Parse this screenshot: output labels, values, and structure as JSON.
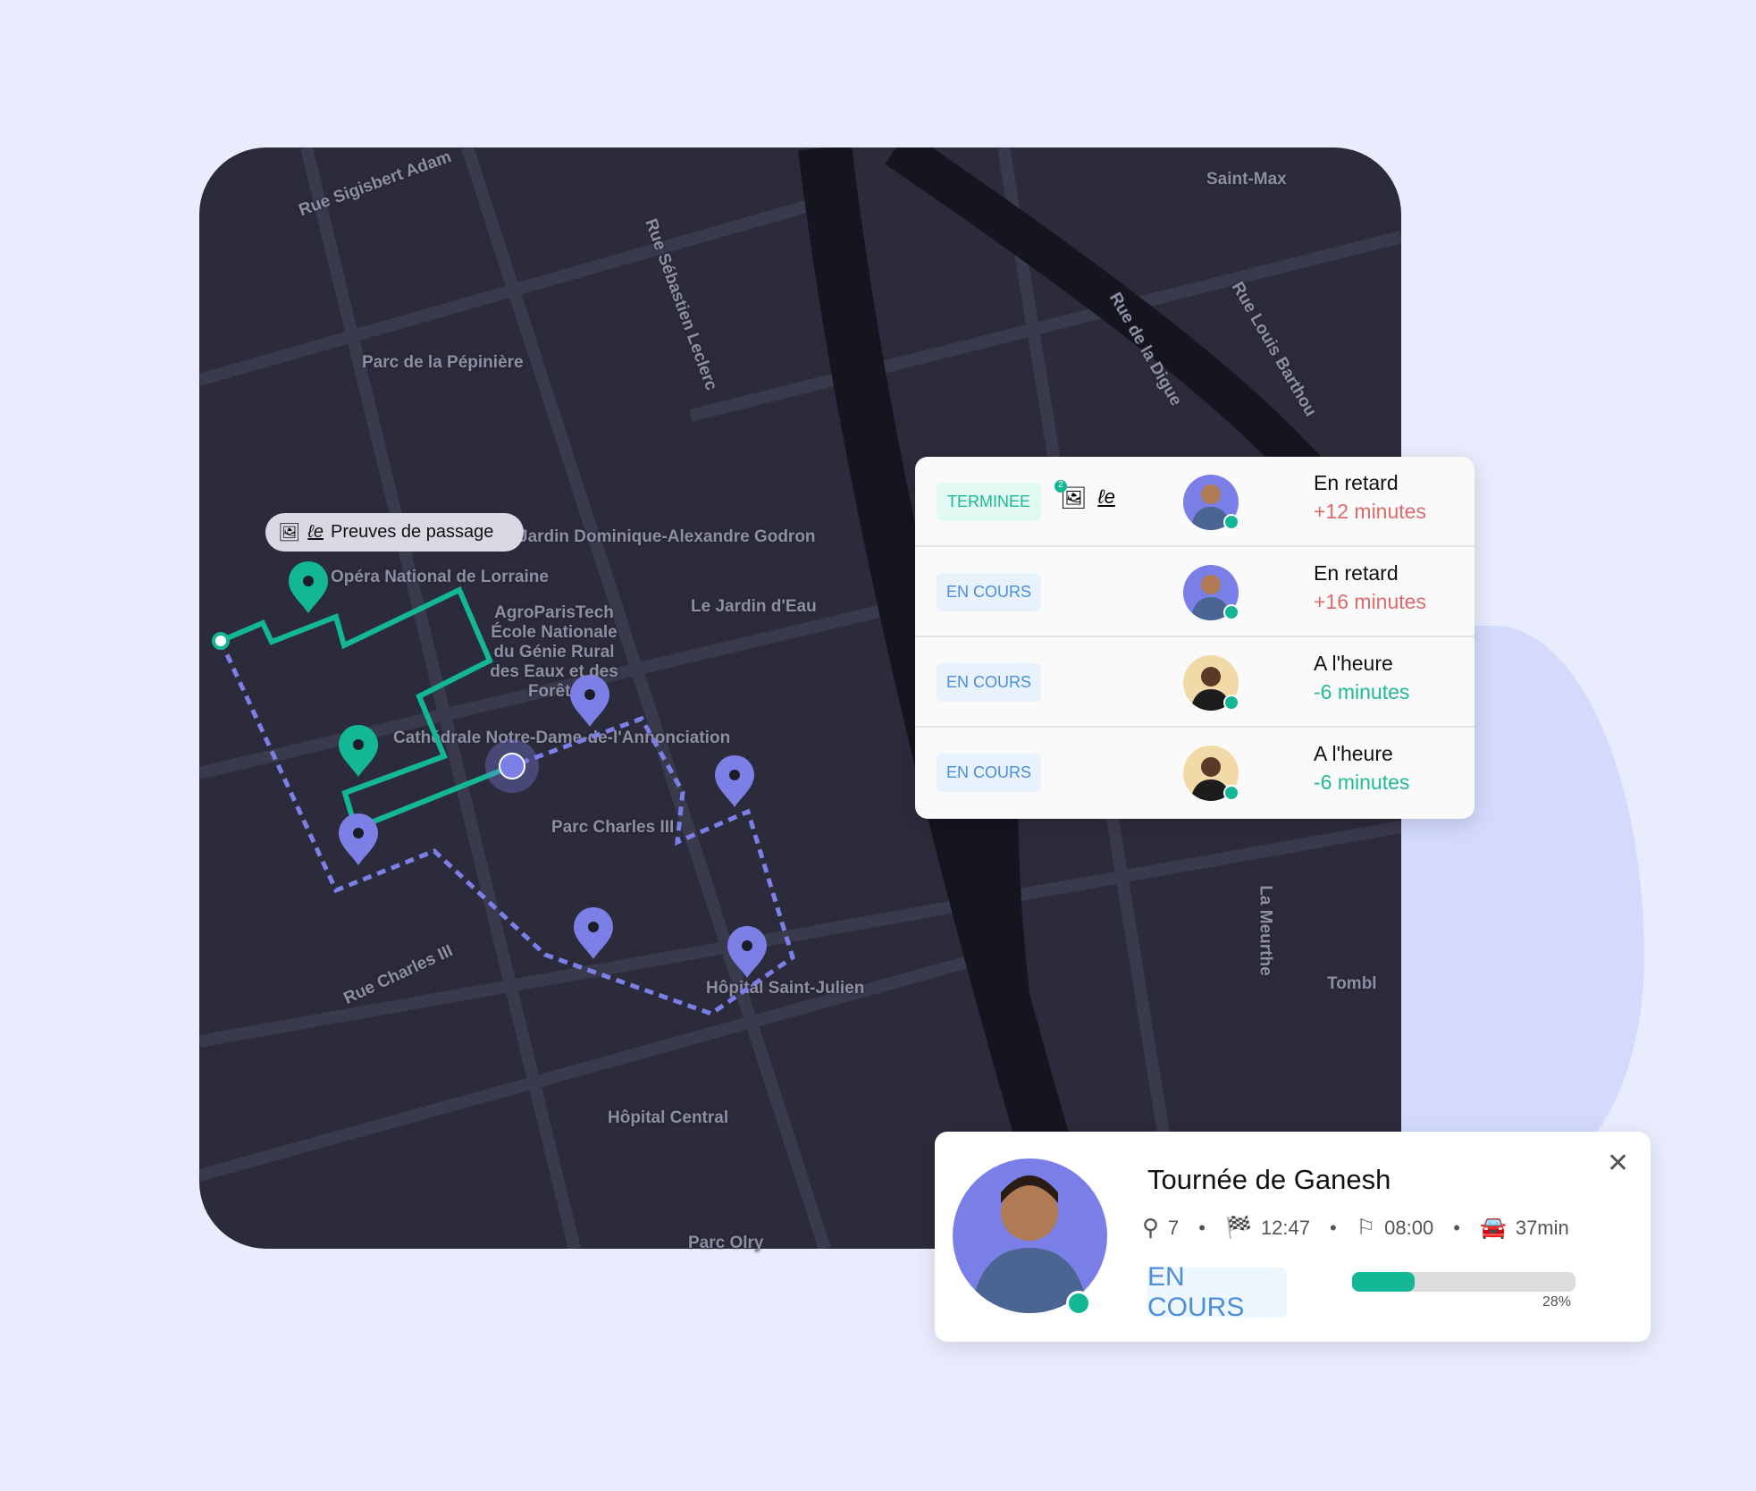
{
  "colors": {
    "accent_teal": "#13b795",
    "route_purple": "#7b7fe6",
    "late": "#e06a6a",
    "ontime": "#1fb996",
    "badge_blue": "#4d8ed8"
  },
  "map": {
    "labels": [
      "Rue Sigisbert Adam",
      "Saint-Max",
      "Rue Sébastien Leclerc",
      "Rue de la Digue",
      "Rue Louis Barthou",
      "Parc de la Pépinière",
      "Opéra National de Lorraine",
      "AgroParisTech École Nationale du Génie Rural des Eaux et des Forêts",
      "Le Jardin d'Eau",
      "Cathédrale Notre-Dame-de-l'Annonciation",
      "Parc Charles III",
      "Rue Charles III",
      "Hôpital Saint-Julien",
      "Hôpital Central",
      "La Meurthe",
      "Tombl",
      "Parc Olry",
      "Jardin Dominique-Alexandre Godron"
    ],
    "proof_pill": {
      "label": "Preuves de passage",
      "icons": [
        "photo-icon",
        "signature-icon"
      ]
    }
  },
  "stops": [
    {
      "status": "TERMINEE",
      "photo_count": "2",
      "has_proofs": true,
      "state": "En retard",
      "delay": "+12 minutes",
      "kind": "late",
      "driver": "man"
    },
    {
      "status": "EN COURS",
      "has_proofs": false,
      "state": "En retard",
      "delay": "+16 minutes",
      "kind": "late",
      "driver": "man"
    },
    {
      "status": "EN COURS",
      "has_proofs": false,
      "state": "A l'heure",
      "delay": "-6 minutes",
      "kind": "ontime",
      "driver": "woman"
    },
    {
      "status": "EN COURS",
      "has_proofs": false,
      "state": "A l'heure",
      "delay": "-6 minutes",
      "kind": "ontime",
      "driver": "woman"
    }
  ],
  "tour": {
    "title": "Tournée de Ganesh",
    "stops": "7",
    "end_time": "12:47",
    "start_time": "08:00",
    "duration": "37min",
    "status": "EN COURS",
    "progress_percent": 28,
    "progress_label": "28%"
  }
}
